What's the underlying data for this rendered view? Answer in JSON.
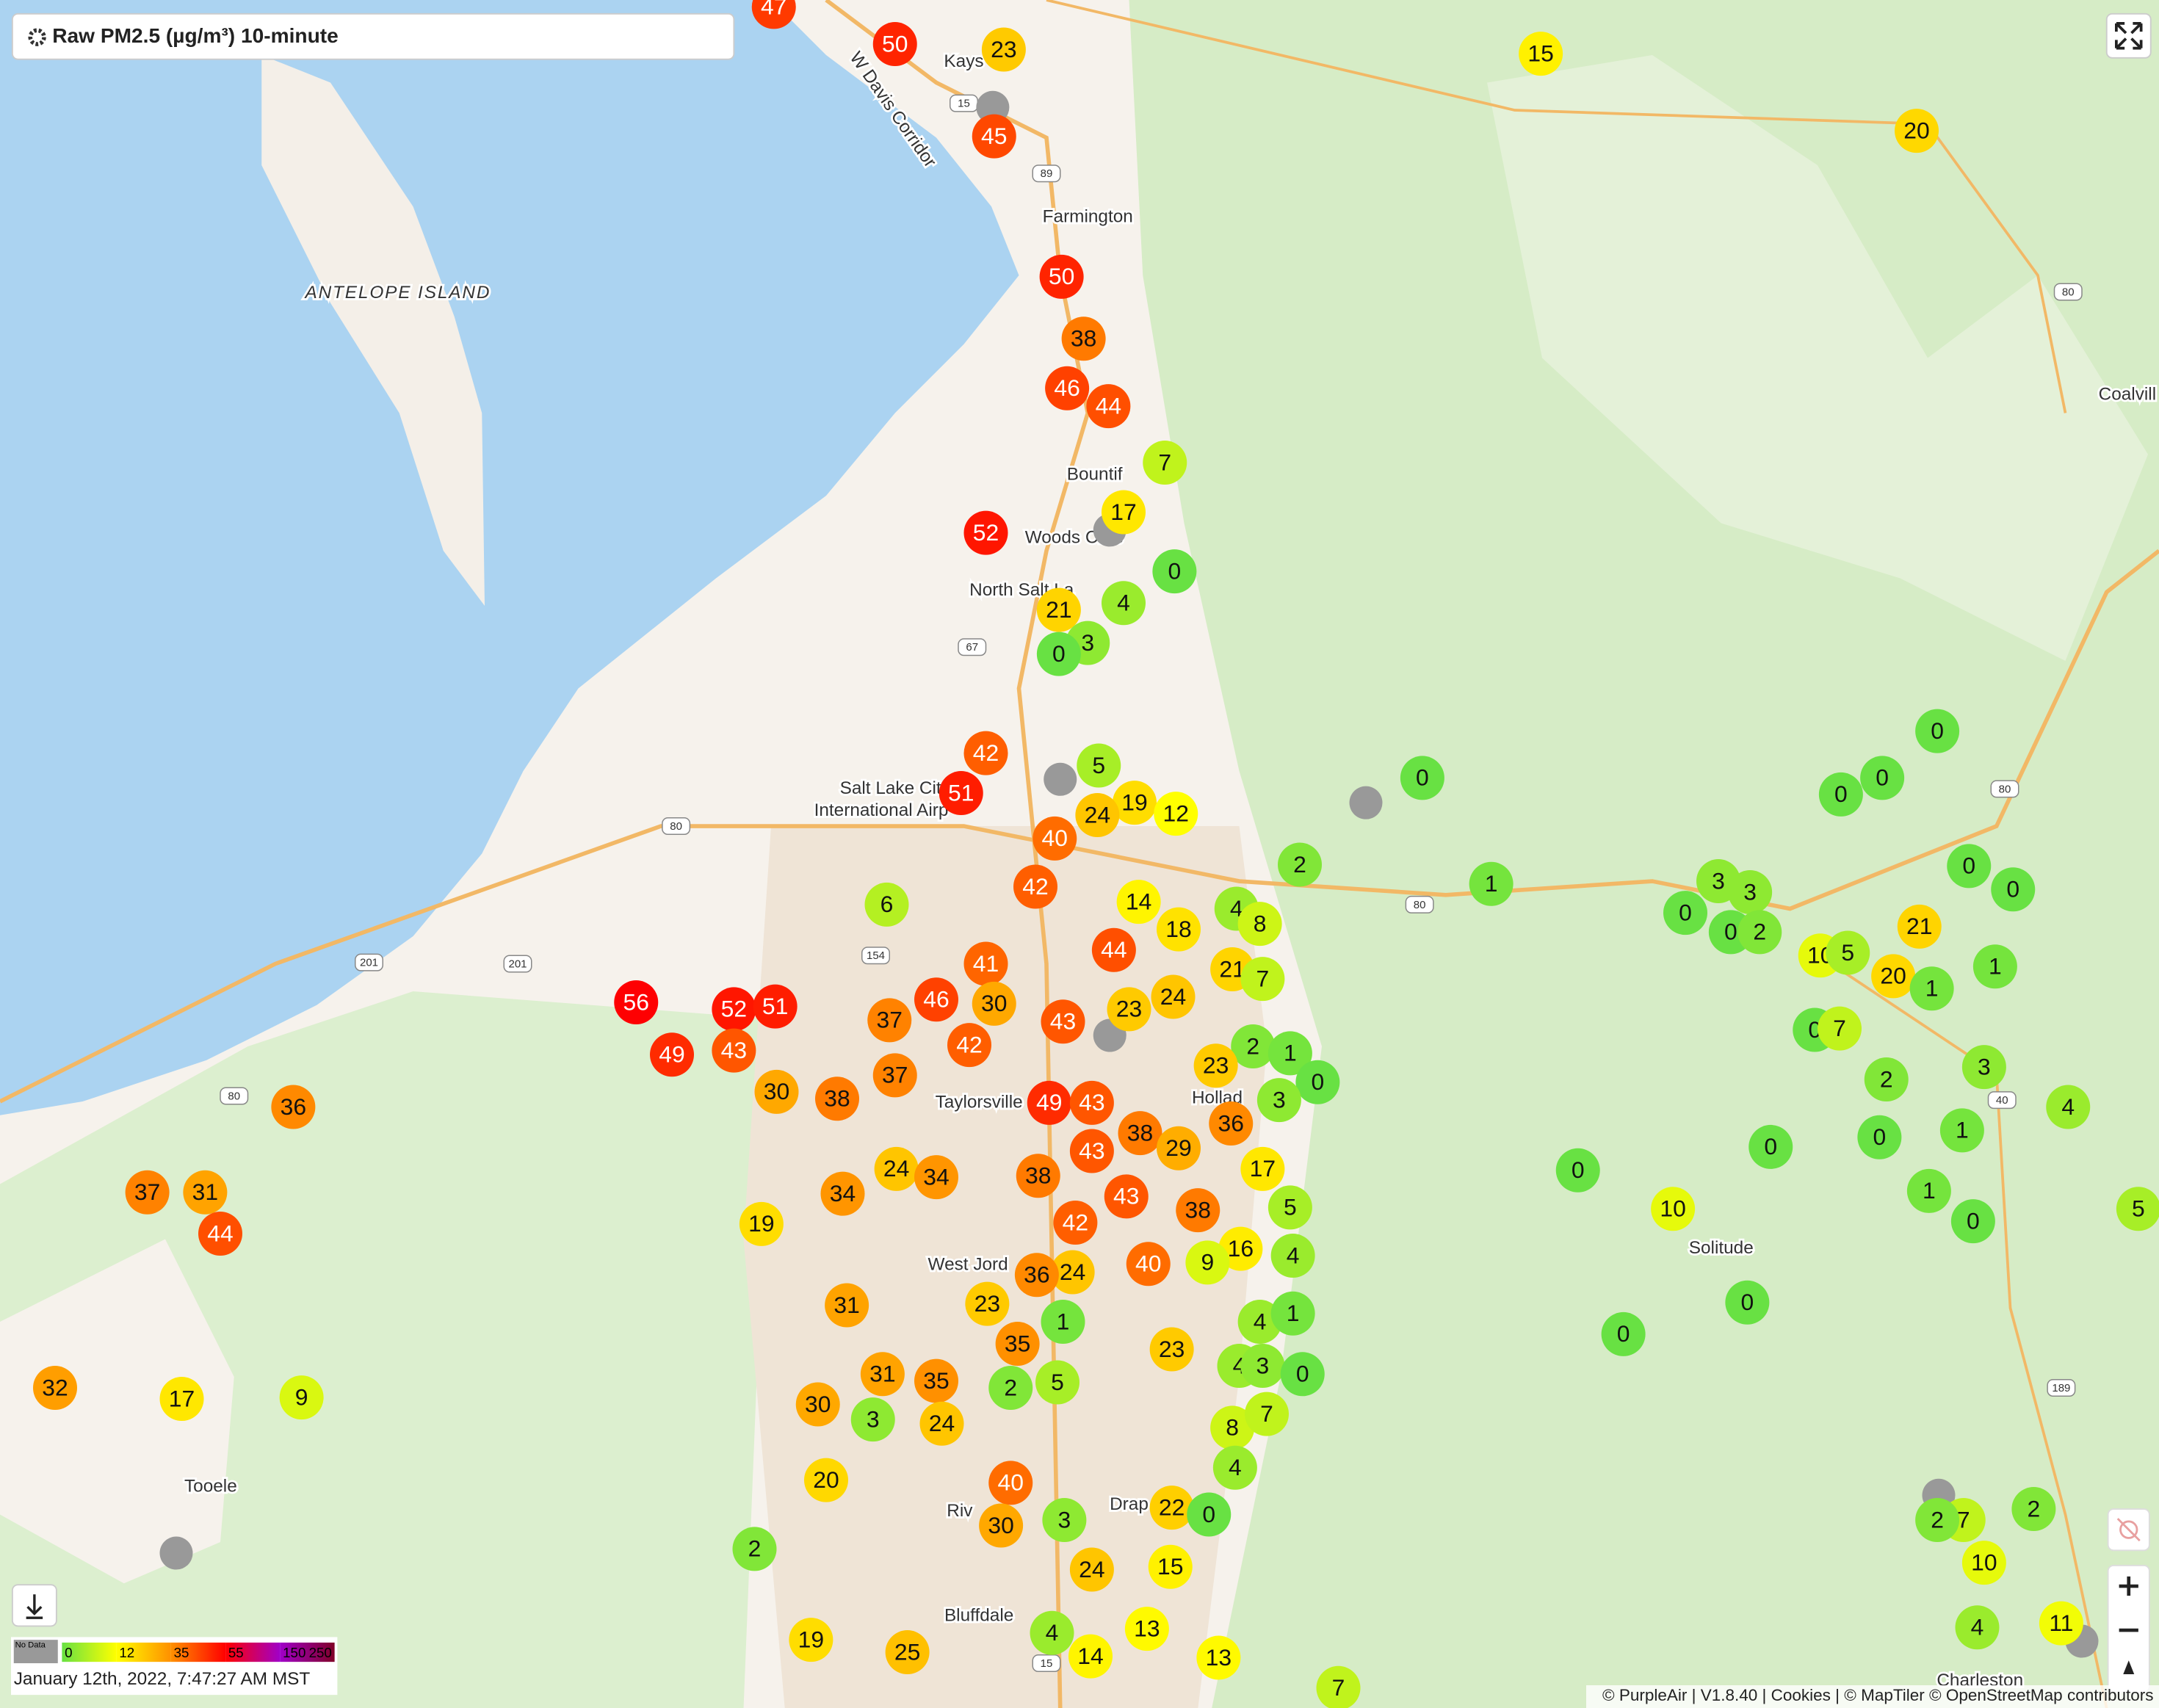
{
  "header": {
    "title": "Raw PM2.5 (µg/m³) 10-minute"
  },
  "legend": {
    "no_data": "No Data",
    "stops": [
      {
        "value": 0,
        "color": "#68e143"
      },
      {
        "value": 12,
        "color": "#ffff00"
      },
      {
        "value": 35,
        "color": "#ff9000"
      },
      {
        "value": 55,
        "color": "#ff0000"
      },
      {
        "value": 150,
        "color": "#a000c8"
      },
      {
        "value": 250,
        "color": "#800028"
      }
    ]
  },
  "timestamp": "January 12th, 2022, 7:47:27 AM MST",
  "attribution": "© PurpleAir | V1.8.40 | Cookies | © MapTiler © OpenStreetMap contributors",
  "places": [
    "Kays",
    "Farmington",
    "ANTELOPE ISLAND",
    "Bountif",
    "Woods Cros",
    "North Salt La",
    "Salt Lake City",
    "International Airp",
    "Taylorsville",
    "Hollad",
    "West Jord",
    "Riv",
    "Drap",
    "Bluffdale",
    "Tooele",
    "Solitude",
    "Coalvill",
    "Charleston",
    "W Davis Corridor"
  ],
  "shields": [
    "80",
    "80",
    "80",
    "80",
    "80",
    "15",
    "15",
    "89",
    "201",
    "201",
    "154",
    "67",
    "40",
    "189"
  ],
  "sensors": [
    47,
    50,
    23,
    45,
    50,
    38,
    46,
    44,
    7,
    17,
    52,
    0,
    21,
    4,
    3,
    0,
    15,
    20,
    42,
    51,
    5,
    19,
    24,
    12,
    40,
    42,
    0,
    2,
    1,
    0,
    0,
    0,
    0,
    0,
    3,
    3,
    0,
    0,
    2,
    10,
    5,
    21,
    20,
    1,
    1,
    0,
    7,
    6,
    14,
    4,
    8,
    18,
    44,
    41,
    21,
    7,
    24,
    23,
    30,
    46,
    37,
    42,
    43,
    56,
    52,
    51,
    49,
    43,
    37,
    30,
    38,
    49,
    43,
    2,
    1,
    0,
    3,
    23,
    36,
    38,
    29,
    43,
    17,
    36,
    37,
    31,
    44,
    24,
    34,
    34,
    38,
    43,
    38,
    42,
    5,
    19,
    4,
    16,
    9,
    40,
    24,
    36,
    31,
    23,
    1,
    4,
    1,
    35,
    23,
    4,
    3,
    0,
    0,
    10,
    0,
    0,
    0,
    2,
    3,
    4,
    0,
    1,
    1,
    0,
    5,
    7,
    2,
    2,
    10,
    4,
    11,
    32,
    17,
    9,
    31,
    35,
    2,
    5,
    30,
    3,
    24,
    8,
    7,
    4,
    40,
    20,
    3,
    30,
    22,
    0,
    2,
    24,
    15,
    4,
    13,
    14,
    13,
    19,
    25,
    7
  ]
}
